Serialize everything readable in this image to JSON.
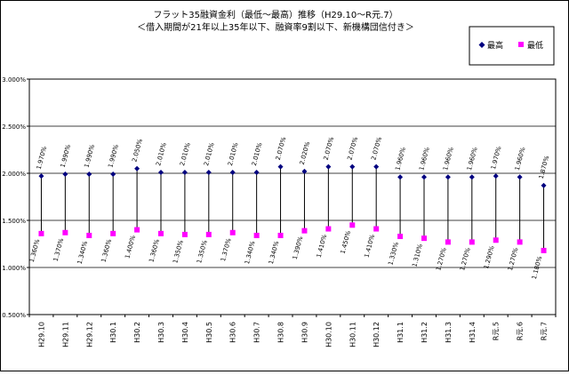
{
  "chart_data": {
    "type": "line",
    "title": "フラット35融資金利（最低～最高）推移（H29.10～R元.7）",
    "subtitle": "＜借入期間が21年以上35年以下、融資率9割以下、新機構団信付き＞",
    "categories": [
      "H29.10",
      "H29.11",
      "H29.12",
      "H30.1",
      "H30.2",
      "H30.3",
      "H30.4",
      "H30.5",
      "H30.6",
      "H30.7",
      "H30.8",
      "H30.9",
      "H30.10",
      "H30.11",
      "H30.12",
      "H31.1",
      "H31.2",
      "H31.3",
      "H31.4",
      "R元.5",
      "R元.6",
      "R元.7"
    ],
    "series": [
      {
        "name": "最高",
        "color": "#000080",
        "marker": "diamond",
        "values": [
          1.97,
          1.99,
          1.99,
          1.99,
          2.05,
          2.01,
          2.01,
          2.01,
          2.01,
          2.01,
          2.07,
          2.02,
          2.07,
          2.07,
          2.07,
          1.96,
          1.96,
          1.96,
          1.96,
          1.97,
          1.96,
          1.87
        ],
        "labels": [
          "1.970%",
          "1.990%",
          "1.990%",
          "1.990%",
          "2.050%",
          "2.010%",
          "2.010%",
          "2.010%",
          "2.010%",
          "2.010%",
          "2.070%",
          "2.020%",
          "2.070%",
          "2.070%",
          "2.070%",
          "1.960%",
          "1.960%",
          "1.960%",
          "1.960%",
          "1.970%",
          "1.960%",
          "1.870%"
        ]
      },
      {
        "name": "最低",
        "color": "#ff00ff",
        "marker": "square",
        "values": [
          1.36,
          1.37,
          1.34,
          1.36,
          1.4,
          1.36,
          1.35,
          1.35,
          1.37,
          1.34,
          1.34,
          1.39,
          1.41,
          1.45,
          1.41,
          1.33,
          1.31,
          1.27,
          1.27,
          1.29,
          1.27,
          1.18
        ],
        "labels": [
          "1.360%",
          "1.370%",
          "1.340%",
          "1.360%",
          "1.400%",
          "1.360%",
          "1.350%",
          "1.350%",
          "1.370%",
          "1.340%",
          "1.340%",
          "1.390%",
          "1.410%",
          "1.450%",
          "1.410%",
          "1.330%",
          "1.310%",
          "1.270%",
          "1.270%",
          "1.290%",
          "1.270%",
          "1.180%"
        ]
      }
    ],
    "ylim": [
      0.5,
      3.0
    ],
    "yticks": [
      "0.500%",
      "1.000%",
      "1.500%",
      "2.000%",
      "2.500%",
      "3.000%"
    ],
    "ytick_values": [
      0.5,
      1.0,
      1.5,
      2.0,
      2.5,
      3.0
    ],
    "grid": true,
    "legend_position": "top-right",
    "xlabel": "",
    "ylabel": ""
  }
}
